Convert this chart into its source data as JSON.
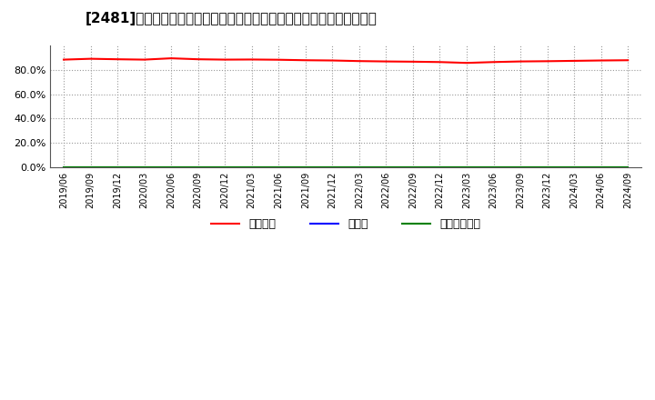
{
  "title": "[2481]　自己資本、のれん、繰延税金資産の総資産に対する比率の推移",
  "x_labels": [
    "2019/06",
    "2019/09",
    "2019/12",
    "2020/03",
    "2020/06",
    "2020/09",
    "2020/12",
    "2021/03",
    "2021/06",
    "2021/09",
    "2021/12",
    "2022/03",
    "2022/06",
    "2022/09",
    "2022/12",
    "2023/03",
    "2023/06",
    "2023/09",
    "2023/12",
    "2024/03",
    "2024/06",
    "2024/09"
  ],
  "jikoshihon": [
    88.5,
    89.2,
    88.8,
    88.5,
    89.6,
    88.8,
    88.5,
    88.6,
    88.4,
    88.0,
    87.8,
    87.3,
    87.0,
    86.8,
    86.5,
    85.8,
    86.5,
    87.0,
    87.2,
    87.5,
    87.8,
    88.0
  ],
  "noren": [
    0,
    0,
    0,
    0,
    0,
    0,
    0,
    0,
    0,
    0,
    0,
    0,
    0,
    0,
    0,
    0,
    0,
    0,
    0,
    0,
    0,
    0
  ],
  "kuenizei": [
    0,
    0,
    0,
    0,
    0,
    0,
    0,
    0,
    0,
    0,
    0,
    0,
    0,
    0,
    0,
    0,
    0,
    0,
    0,
    0,
    0,
    0
  ],
  "jikoshihon_color": "#ff0000",
  "noren_color": "#0000ff",
  "kuenizei_color": "#008000",
  "legend_labels": [
    "自己資本",
    "のれん",
    "繰延税金資産"
  ],
  "ylim": [
    0,
    100
  ],
  "yticks": [
    0,
    20,
    40,
    60,
    80
  ],
  "ytick_labels": [
    "0.0%",
    "20.0%",
    "40.0%",
    "60.0%",
    "80.0%"
  ],
  "background_color": "#ffffff",
  "plot_bg_color": "#ffffff",
  "grid_color": "#999999",
  "title_fontsize": 11,
  "legend_fontsize": 9,
  "tick_fontsize": 8
}
